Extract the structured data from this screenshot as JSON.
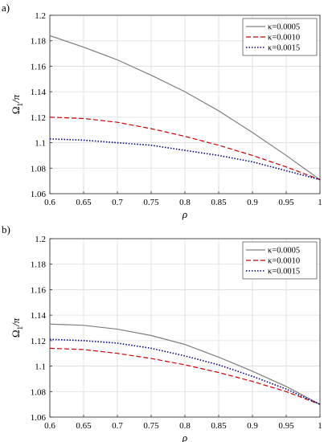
{
  "chart_data": [
    {
      "panel_label": "a)",
      "type": "line",
      "xlabel": "ρ",
      "ylabel_main": "Ω",
      "ylabel_sub": "1",
      "ylabel_tail": "/π",
      "xlim": [
        0.6,
        1
      ],
      "ylim": [
        1.06,
        1.2
      ],
      "x_ticks": [
        "0.6",
        "0.65",
        "0.7",
        "0.75",
        "0.8",
        "0.85",
        "0.9",
        "0.95",
        "1"
      ],
      "y_ticks": [
        "1.06",
        "1.08",
        "1.1",
        "1.12",
        "1.14",
        "1.16",
        "1.18",
        "1.2"
      ],
      "grid": true,
      "legend_placement": "top-right",
      "x": [
        0.6,
        0.65,
        0.7,
        0.75,
        0.8,
        0.85,
        0.9,
        0.95,
        1.0
      ],
      "series": [
        {
          "name": "κ=0.0005",
          "color": "#7f7f7f",
          "dash": "solid",
          "values": [
            1.184,
            1.175,
            1.165,
            1.153,
            1.14,
            1.125,
            1.108,
            1.09,
            1.071
          ]
        },
        {
          "name": "κ=0.0010",
          "color": "#cc0000",
          "dash": "dashed",
          "values": [
            1.12,
            1.119,
            1.116,
            1.111,
            1.105,
            1.098,
            1.09,
            1.081,
            1.071
          ]
        },
        {
          "name": "κ=0.0015",
          "color": "#00008b",
          "dash": "dotted",
          "values": [
            1.103,
            1.102,
            1.1,
            1.098,
            1.094,
            1.09,
            1.085,
            1.078,
            1.071
          ]
        }
      ]
    },
    {
      "panel_label": "b)",
      "type": "line",
      "xlabel": "ρ",
      "ylabel_main": "Ω",
      "ylabel_sub": "1",
      "ylabel_tail": "/π",
      "xlim": [
        0.6,
        1
      ],
      "ylim": [
        1.06,
        1.2
      ],
      "x_ticks": [
        "0.6",
        "0.65",
        "0.7",
        "0.75",
        "0.8",
        "0.85",
        "0.9",
        "0.95",
        "1"
      ],
      "y_ticks": [
        "1.06",
        "1.08",
        "1.1",
        "1.12",
        "1.14",
        "1.16",
        "1.18",
        "1.2"
      ],
      "grid": true,
      "legend_placement": "top-right",
      "x": [
        0.6,
        0.65,
        0.7,
        0.75,
        0.8,
        0.85,
        0.9,
        0.95,
        1.0
      ],
      "series": [
        {
          "name": "κ=0.0005",
          "color": "#7f7f7f",
          "dash": "solid",
          "values": [
            1.133,
            1.132,
            1.129,
            1.124,
            1.117,
            1.107,
            1.096,
            1.084,
            1.07
          ]
        },
        {
          "name": "κ=0.0010",
          "color": "#cc0000",
          "dash": "dashed",
          "values": [
            1.114,
            1.113,
            1.11,
            1.106,
            1.101,
            1.095,
            1.088,
            1.08,
            1.07
          ]
        },
        {
          "name": "κ=0.0015",
          "color": "#00008b",
          "dash": "dotted",
          "values": [
            1.121,
            1.12,
            1.118,
            1.114,
            1.108,
            1.101,
            1.092,
            1.082,
            1.07
          ]
        }
      ]
    }
  ]
}
